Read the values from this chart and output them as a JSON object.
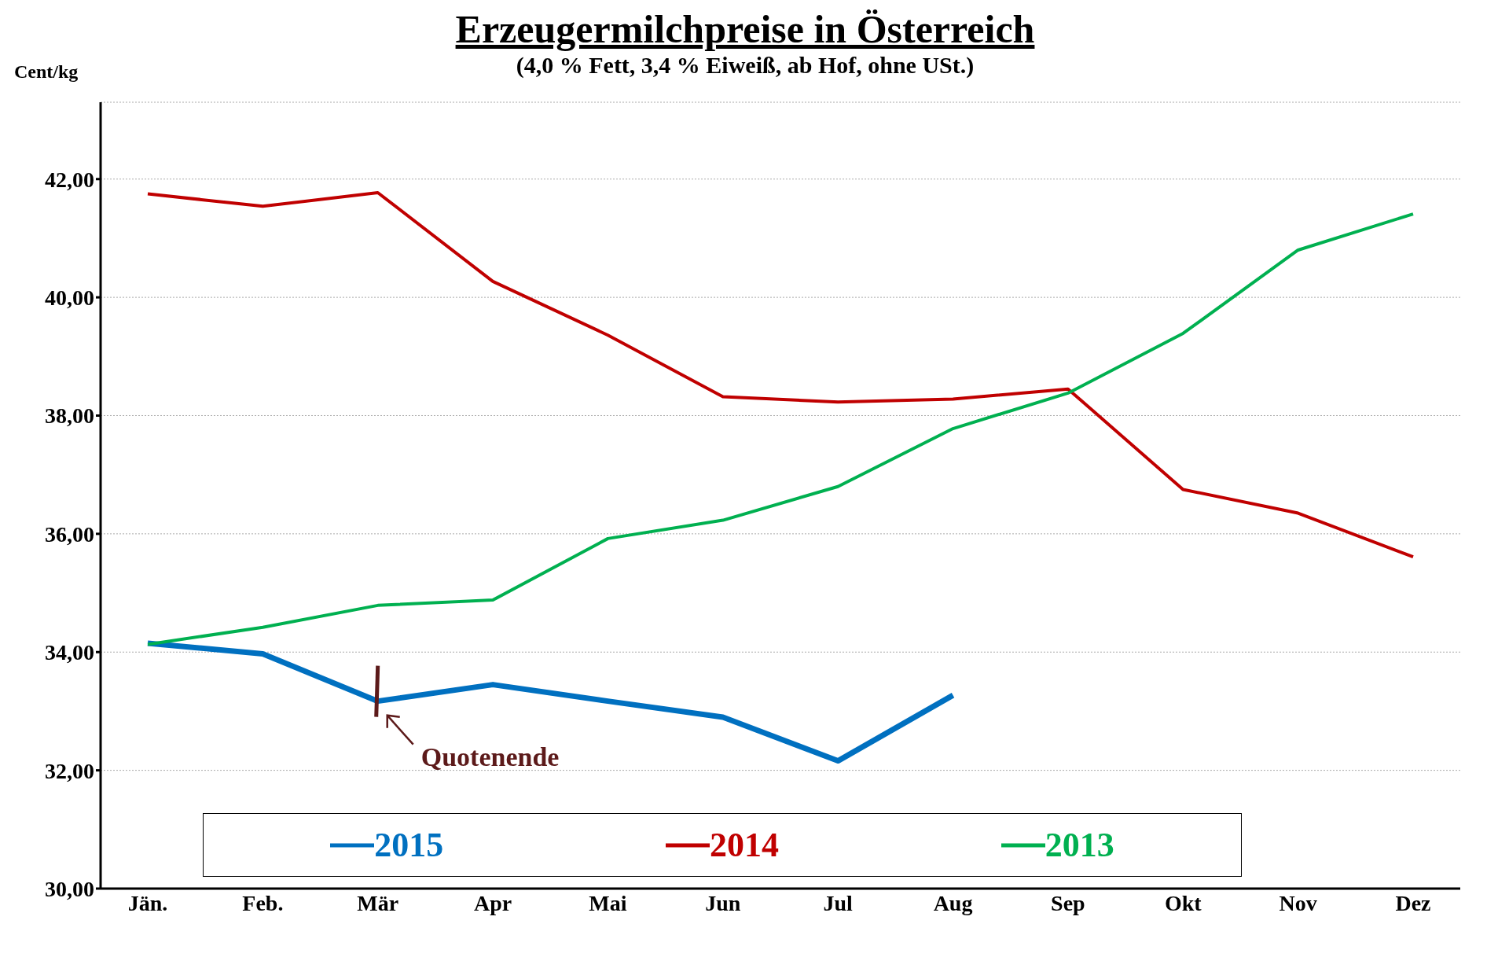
{
  "chart_data": {
    "type": "line",
    "title": "Erzeugermilchpreise in Österreich",
    "subtitle": "(4,0 % Fett, 3,4 % Eiweiß, ab Hof, ohne USt.)",
    "ylabel": "Cent/kg",
    "categories": [
      "Jän.",
      "Feb.",
      "Mär",
      "Apr",
      "Mai",
      "Jun",
      "Jul",
      "Aug",
      "Sep",
      "Okt",
      "Nov",
      "Dez"
    ],
    "series": [
      {
        "name": "2015",
        "color": "#0070c0",
        "values": [
          34.15,
          33.97,
          33.17,
          33.45,
          33.17,
          32.9,
          32.16,
          33.27,
          null,
          null,
          null,
          null
        ]
      },
      {
        "name": "2014",
        "color": "#c00000",
        "values": [
          41.75,
          41.54,
          41.77,
          40.27,
          39.36,
          38.32,
          38.23,
          38.28,
          38.45,
          36.75,
          36.35,
          35.61
        ]
      },
      {
        "name": "2013",
        "color": "#00b050",
        "values": [
          34.13,
          34.42,
          34.79,
          34.88,
          35.92,
          36.23,
          36.8,
          37.78,
          38.38,
          39.39,
          40.8,
          41.41
        ]
      }
    ],
    "ylim": [
      30,
      43.3
    ],
    "yticks": [
      {
        "value": 30,
        "label": "30,00"
      },
      {
        "value": 32,
        "label": "32,00"
      },
      {
        "value": 34,
        "label": "34,00"
      },
      {
        "value": 36,
        "label": "36,00"
      },
      {
        "value": 38,
        "label": "38,00"
      },
      {
        "value": 40,
        "label": "40,00"
      },
      {
        "value": 42,
        "label": "42,00"
      }
    ],
    "annotations": [
      {
        "text": "Quotenende",
        "x": "Mär",
        "y": 33.17
      }
    ],
    "grid": "y",
    "legend": "bottom",
    "marker": "none",
    "line_style": "solid"
  }
}
